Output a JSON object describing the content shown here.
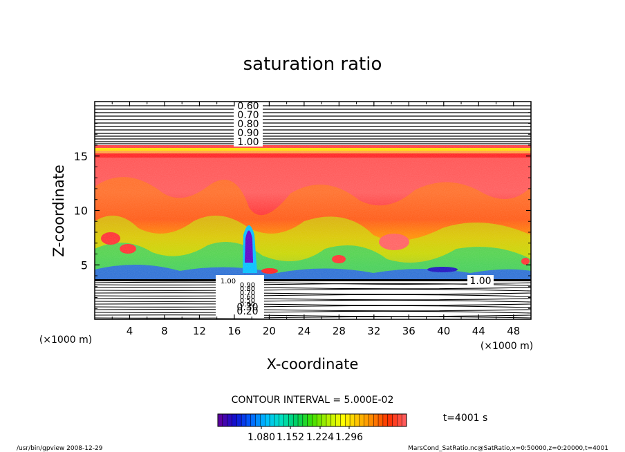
{
  "chart_data": {
    "type": "heatmap",
    "title": "saturation ratio",
    "xlabel": "X-coordinate",
    "ylabel": "Z-coordinate",
    "x_unit": "(×1000 m)",
    "y_unit": "(×1000 m)",
    "xlim": [
      0,
      50
    ],
    "ylim": [
      0,
      20
    ],
    "x_ticks": [
      "4",
      "8",
      "12",
      "16",
      "20",
      "24",
      "28",
      "32",
      "36",
      "40",
      "44",
      "48"
    ],
    "y_ticks": [
      "5",
      "10",
      "15"
    ],
    "upper_contour_labels": [
      "0.60",
      "0.70",
      "0.80",
      "0.90",
      "1.00"
    ],
    "lower_contour_labels": [
      "1.00",
      "0.90",
      "0.80",
      "0.70",
      "0.60",
      "0.50",
      "0.40",
      "0.30",
      "0.20"
    ],
    "right_contour_label": "1.00",
    "contour_interval_text": "CONTOUR INTERVAL = 5.000E-02",
    "colorbar": {
      "tick_labels": [
        "1.080",
        "1.152",
        "1.224",
        "1.296"
      ],
      "colors": [
        "#5a00a0",
        "#1010d0",
        "#0060ff",
        "#00c0ff",
        "#00e0c0",
        "#00d060",
        "#40e000",
        "#b0f000",
        "#ffff00",
        "#ffc000",
        "#ff8000",
        "#ff3000",
        "#ff5a5a"
      ]
    },
    "time_label": "t=4001 s",
    "footer_left": "/usr/bin/gpview   2008-12-29",
    "footer_right": "MarsCond_SatRatio.nc@SatRatio,x=0:50000,z=0:20000,t=4001"
  }
}
